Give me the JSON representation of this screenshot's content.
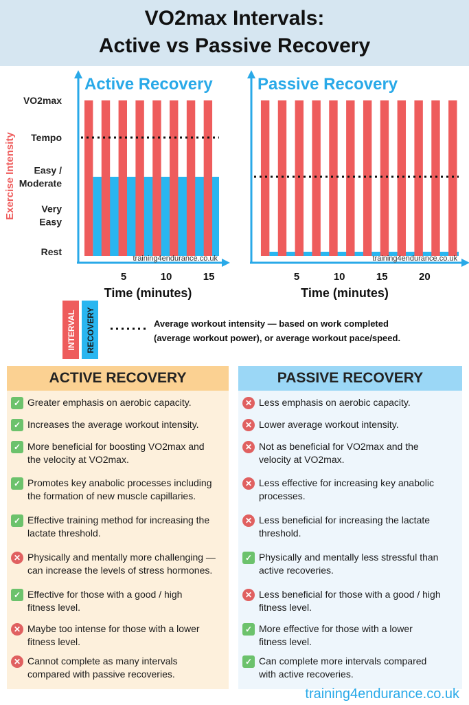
{
  "header": {
    "title_line1": "VO2max Intervals:",
    "title_line2": "Active vs Passive Recovery"
  },
  "y_axis": {
    "title": "Exercise Intensity",
    "levels": [
      {
        "lines": [
          "VO2max"
        ],
        "value": 5
      },
      {
        "lines": [
          "Tempo"
        ],
        "value": 4
      },
      {
        "lines": [
          "Easy /",
          "Moderate"
        ],
        "value": 3
      },
      {
        "lines": [
          "Very",
          "Easy"
        ],
        "value": 2
      },
      {
        "lines": [
          "Rest"
        ],
        "value": 1
      }
    ]
  },
  "chart_data": [
    {
      "type": "bar",
      "title": "Active Recovery",
      "xlabel": "Time (minutes)",
      "ylabel": "Exercise Intensity",
      "xlim": [
        0,
        16.2
      ],
      "xticks": [
        5,
        10,
        15
      ],
      "interval": {
        "count": 8,
        "start": 0.4,
        "period": 2,
        "work_minutes": 1,
        "intensity": "VO2max"
      },
      "recovery": {
        "start": 1.4,
        "end": 16.2,
        "intensity": "Easy / Moderate"
      },
      "average_intensity": "Tempo",
      "watermark": "training4endurance.co.uk",
      "colors": {
        "interval": "#ee5c5c",
        "recovery": "#29b6f0"
      }
    },
    {
      "type": "bar",
      "title": "Passive Recovery",
      "xlabel": "Time (minutes)",
      "ylabel": "Exercise Intensity",
      "xlim": [
        0,
        24
      ],
      "xticks": [
        5,
        10,
        15,
        20
      ],
      "interval": {
        "count": 12,
        "start": 0.8,
        "period": 2,
        "work_minutes": 1,
        "intensity": "VO2max"
      },
      "recovery": {
        "start": 1.8,
        "end": 24,
        "intensity": "Rest"
      },
      "average_intensity": "Easy / Moderate",
      "watermark": "training4endurance.co.uk",
      "colors": {
        "interval": "#ee5c5c",
        "recovery": "#29b6f0"
      }
    }
  ],
  "legend": {
    "interval": "INTERVAL",
    "recovery": "RECOVERY",
    "line_text1": "Average workout intensity — based on work completed",
    "line_text2": "(average workout power), or average workout pace/speed."
  },
  "active_panel": {
    "title": "ACTIVE RECOVERY",
    "items": [
      {
        "type": "check",
        "lines": [
          "Greater emphasis on aerobic capacity."
        ]
      },
      {
        "type": "check",
        "lines": [
          "Increases the average workout intensity."
        ]
      },
      {
        "type": "check",
        "lines": [
          "More beneficial for boosting VO2max and",
          "the velocity at VO2max."
        ]
      },
      {
        "type": "check",
        "lines": [
          "Promotes key anabolic processes including",
          "the formation of new muscle capillaries."
        ]
      },
      {
        "type": "check",
        "lines": [
          "Effective training method for increasing the",
          "lactate threshold."
        ]
      },
      {
        "type": "cross",
        "lines": [
          "Physically and mentally more challenging —",
          "can increase the levels of stress hormones."
        ]
      },
      {
        "type": "check",
        "lines": [
          "Effective for those with a good / high",
          "fitness level."
        ]
      },
      {
        "type": "cross",
        "lines": [
          "Maybe too intense for those with a lower",
          "fitness level."
        ]
      },
      {
        "type": "cross",
        "lines": [
          "Cannot complete as many intervals",
          "compared with passive recoveries."
        ]
      }
    ]
  },
  "passive_panel": {
    "title": "PASSIVE RECOVERY",
    "items": [
      {
        "type": "cross",
        "lines": [
          "Less emphasis on aerobic capacity."
        ]
      },
      {
        "type": "cross",
        "lines": [
          "Lower average workout intensity."
        ]
      },
      {
        "type": "cross",
        "lines": [
          "Not as beneficial for VO2max and the",
          "velocity at VO2max."
        ]
      },
      {
        "type": "cross",
        "lines": [
          "Less effective for increasing key anabolic",
          "processes."
        ]
      },
      {
        "type": "cross",
        "lines": [
          "Less beneficial for increasing the lactate",
          "threshold."
        ]
      },
      {
        "type": "check",
        "lines": [
          "Physically and mentally less stressful than",
          "active recoveries."
        ]
      },
      {
        "type": "cross",
        "lines": [
          "Less beneficial for those with a good / high",
          "fitness level."
        ]
      },
      {
        "type": "check",
        "lines": [
          "More effective for those with a lower",
          "fitness level."
        ]
      },
      {
        "type": "check",
        "lines": [
          "Can complete more intervals compared",
          "with active recoveries."
        ]
      }
    ]
  },
  "footer": {
    "text": "training4endurance.co.uk"
  }
}
